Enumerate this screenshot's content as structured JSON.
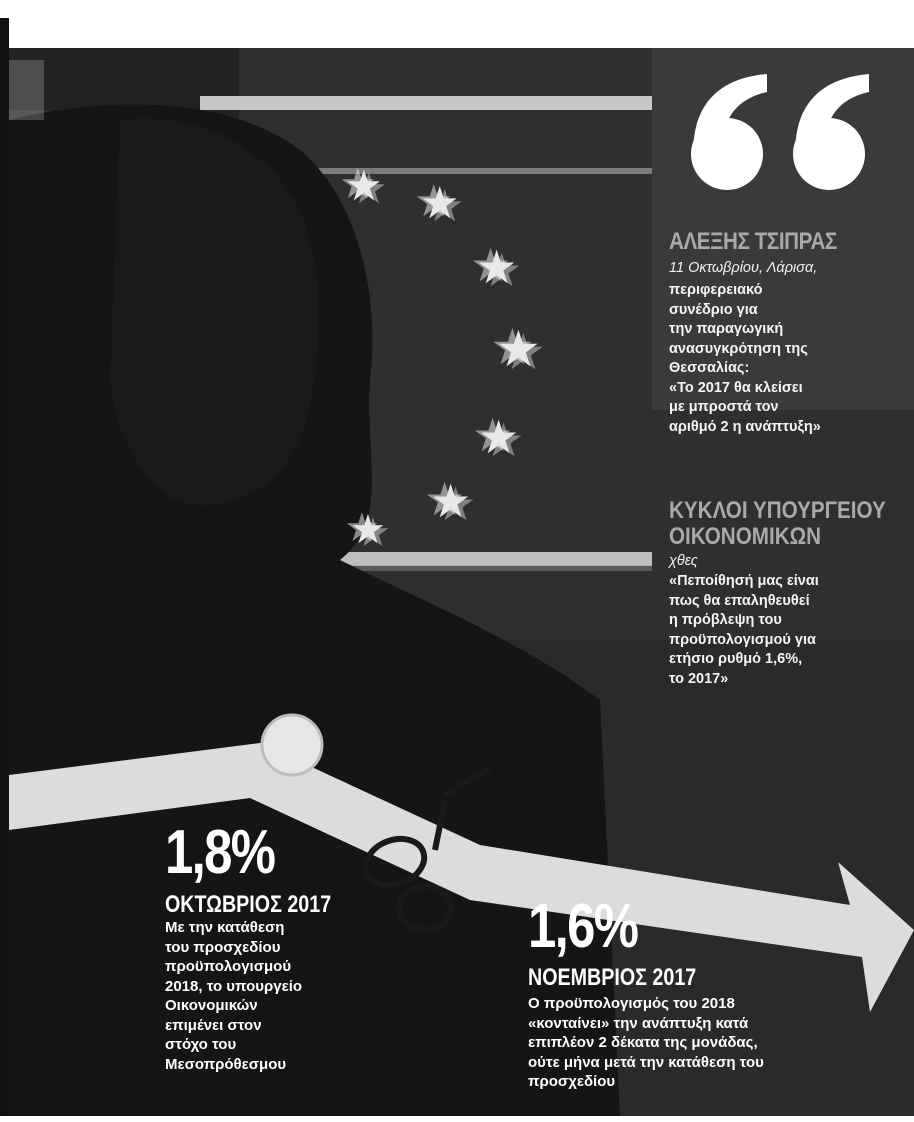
{
  "quote": {
    "speaker1": {
      "name": "ΑΛΕΞΗΣ ΤΣΙΠΡΑΣ",
      "context": "11 Οκτωβρίου, Λάρισα,",
      "lines": [
        "περιφερειακό",
        "συνέδριο για",
        "την παραγωγική",
        "ανασυγκρότηση της",
        "Θεσσαλίας:",
        "«Το 2017 θα κλείσει",
        "με μπροστά τον",
        "αριθμό 2 η ανάπτυξη»"
      ]
    },
    "speaker2": {
      "name_line1": "ΚΥΚΛΟΙ ΥΠΟΥΡΓΕΙΟΥ",
      "name_line2": "ΟΙΚΟΝΟΜΙΚΩΝ",
      "context": "χθες",
      "lines": [
        "«Πεποίθησή μας είναι",
        "πως θα επαληθευθεί",
        "η πρόβλεψη του",
        "προϋπολογισμού για",
        "ετήσιο ρυθμό 1,6%,",
        "το 2017»"
      ]
    }
  },
  "left_stat": {
    "value": "1,8%",
    "label": "ΟΚΤΩΒΡΙΟΣ 2017",
    "lines": [
      " Με την κατάθεση",
      "του προσχεδίου",
      "προϋπολογισμού",
      "2018, το υπουργείο",
      "Οικονομικών",
      "επιμένει στον",
      "στόχο του",
      "Μεσοπρόθεσμου"
    ]
  },
  "right_stat": {
    "value": "1,6%",
    "label": "ΝΟΕΜΒΡΙΟΣ 2017",
    "lines": [
      "Ο προϋπολογισμός του 2018",
      "«κονταίνει» την ανάπτυξη κατά",
      "επιπλέον 2 δέκατα της μονάδας,",
      "ούτε μήνα μετά την κατάθεση του",
      "προσχεδίου"
    ]
  },
  "colors": {
    "background": "#ffffff",
    "photo_dark": "#2e2e2e",
    "quote_box": "#3a3a3a",
    "name_gray": "#a9a9a9",
    "arrow": "#dcdcdc"
  },
  "icons": [
    "quote-marks-icon",
    "scissors-icon",
    "arrow-icon",
    "eu-star-icon"
  ]
}
